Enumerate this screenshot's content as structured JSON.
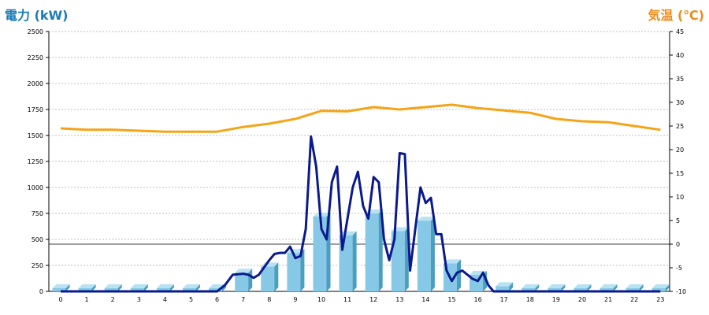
{
  "chart_data": {
    "type": "bar+line",
    "left_axis_title": "電力 (kW)",
    "right_axis_title": "気温 (℃)",
    "colors": {
      "left_title": "#1a7ab8",
      "right_title": "#f08a18",
      "bars": "#86c8e6",
      "bars_side": "#4a9ec0",
      "bars_top": "#b8e2f2",
      "power_line": "#0a1a8c",
      "temp_line": "#f5a416",
      "grid": "#bfbfbf"
    },
    "categories": [
      "0",
      "1",
      "2",
      "3",
      "4",
      "5",
      "6",
      "7",
      "8",
      "9",
      "10",
      "11",
      "12",
      "13",
      "14",
      "15",
      "16",
      "17",
      "18",
      "19",
      "20",
      "21",
      "22",
      "23"
    ],
    "y_left": {
      "min": 0,
      "max": 2500,
      "ticks": [
        "0",
        "250",
        "500",
        "750",
        "1000",
        "1250",
        "1500",
        "1750",
        "2000",
        "2250",
        "2500"
      ]
    },
    "y_right": {
      "min": -10,
      "max": 45,
      "ticks": [
        "-10",
        "-5",
        "0",
        "5",
        "10",
        "15",
        "20",
        "25",
        "30",
        "35",
        "40",
        "45"
      ]
    },
    "reference_line_right_value": 0,
    "bar_values": [
      0,
      0,
      0,
      0,
      0,
      0,
      30,
      180,
      240,
      370,
      720,
      540,
      750,
      580,
      680,
      270,
      160,
      50,
      0,
      0,
      0,
      0,
      0,
      0
    ],
    "power_line": {
      "x": [
        0,
        1,
        2,
        3,
        4,
        5,
        6,
        6.3,
        6.6,
        7,
        7.2,
        7.4,
        7.6,
        7.8,
        8,
        8.2,
        8.4,
        8.6,
        8.8,
        9,
        9.2,
        9.4,
        9.6,
        9.8,
        10,
        10.2,
        10.4,
        10.6,
        10.8,
        11,
        11.2,
        11.4,
        11.6,
        11.8,
        12,
        12.2,
        12.4,
        12.6,
        12.8,
        13,
        13.2,
        13.4,
        13.6,
        13.8,
        14,
        14.2,
        14.4,
        14.6,
        14.8,
        15,
        15.2,
        15.4,
        15.6,
        15.8,
        16,
        16.2,
        16.4,
        16.6,
        16.8,
        17,
        18,
        19,
        20,
        21,
        22,
        23
      ],
      "y": [
        0,
        0,
        0,
        0,
        0,
        0,
        0,
        60,
        160,
        170,
        160,
        130,
        160,
        230,
        300,
        360,
        370,
        370,
        430,
        320,
        340,
        600,
        1490,
        1200,
        600,
        500,
        1050,
        1200,
        400,
        700,
        1000,
        1150,
        820,
        700,
        1100,
        1050,
        500,
        300,
        500,
        1330,
        1320,
        200,
        600,
        1000,
        850,
        900,
        550,
        550,
        200,
        100,
        180,
        200,
        160,
        120,
        100,
        180,
        60,
        0,
        0,
        0,
        0,
        0,
        0,
        0,
        0,
        0
      ]
    },
    "temp_line": {
      "x": [
        0,
        1,
        2,
        3,
        4,
        5,
        6,
        7,
        8,
        9,
        10,
        11,
        12,
        13,
        14,
        15,
        16,
        17,
        18,
        19,
        20,
        21,
        22,
        23
      ],
      "y": [
        24.5,
        24.2,
        24.2,
        24,
        23.8,
        23.8,
        23.8,
        24.8,
        25.5,
        26.5,
        28.2,
        28.1,
        29,
        28.5,
        29,
        29.5,
        28.8,
        28.3,
        27.8,
        26.5,
        26,
        25.8,
        25,
        24.2
      ]
    }
  }
}
